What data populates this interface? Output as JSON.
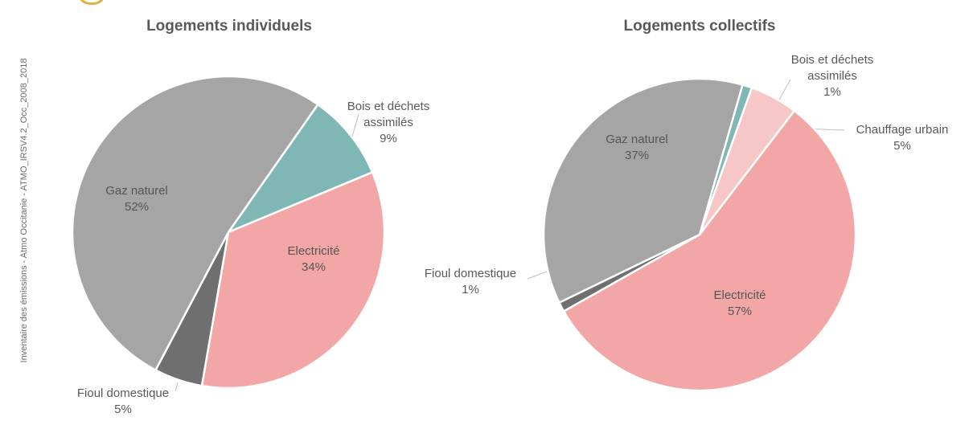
{
  "source_note": "Inventaire des émissions - Atmo Occitanie - ATMO_IRSV4.2_Occ_2008_2018",
  "chart_data": [
    {
      "type": "pie",
      "title": "Logements individuels",
      "slices": [
        {
          "label": "Bois et déchets assimilés",
          "value": 9,
          "display": "9%",
          "color": "#7fb7b6"
        },
        {
          "label": "Electricité",
          "value": 34,
          "display": "34%",
          "color": "#f2a7a6"
        },
        {
          "label": "Fioul domestique",
          "value": 5,
          "display": "5%",
          "color": "#6f6f6f"
        },
        {
          "label": "Gaz naturel",
          "value": 52,
          "display": "52%",
          "color": "#a5a5a5"
        }
      ]
    },
    {
      "type": "pie",
      "title": "Logements collectifs",
      "slices": [
        {
          "label": "Bois et déchets assimilés",
          "value": 1,
          "display": "1%",
          "color": "#7fb7b6"
        },
        {
          "label": "Chauffage urbain",
          "value": 5,
          "display": "5%",
          "color": "#f7c6c6"
        },
        {
          "label": "Electricité",
          "value": 57,
          "display": "57%",
          "color": "#f2a7a6"
        },
        {
          "label": "Fioul domestique",
          "value": 1,
          "display": "1%",
          "color": "#6f6f6f"
        },
        {
          "label": "Gaz naturel",
          "value": 37,
          "display": "37%",
          "color": "#a5a5a5"
        }
      ]
    }
  ]
}
